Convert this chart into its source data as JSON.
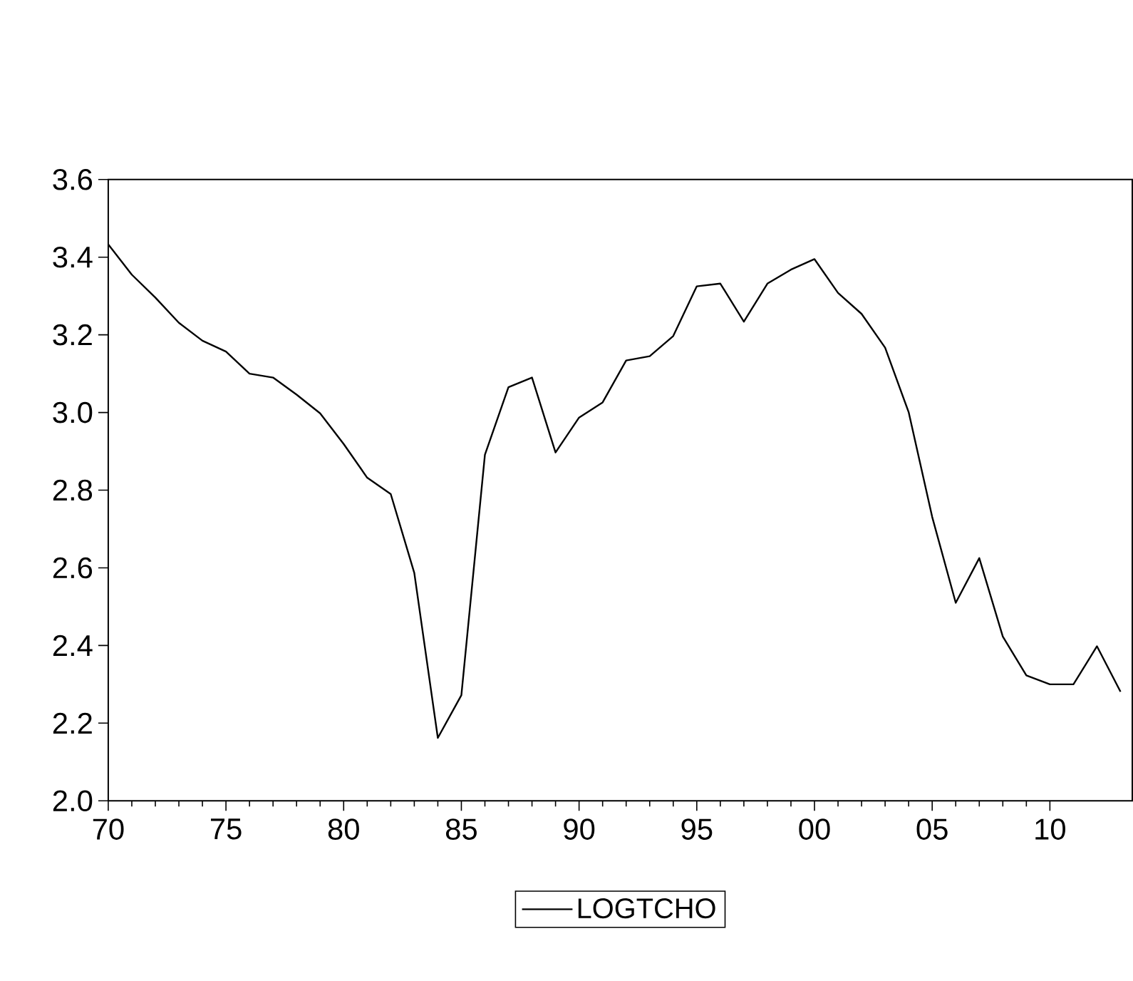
{
  "chart_data": {
    "type": "line",
    "x": [
      1970,
      1971,
      1972,
      1973,
      1974,
      1975,
      1976,
      1977,
      1978,
      1979,
      1980,
      1981,
      1982,
      1983,
      1984,
      1985,
      1986,
      1987,
      1988,
      1989,
      1990,
      1991,
      1992,
      1993,
      1994,
      1995,
      1996,
      1997,
      1998,
      1999,
      2000,
      2001,
      2002,
      2003,
      2004,
      2005,
      2006,
      2007,
      2008,
      2009,
      2010,
      2011,
      2012,
      2013
    ],
    "series": [
      {
        "name": "LOGTCHO",
        "color": "#000000",
        "values": [
          3.433,
          3.355,
          3.296,
          3.231,
          3.185,
          3.157,
          3.1,
          3.09,
          3.046,
          2.998,
          2.919,
          2.832,
          2.79,
          2.587,
          2.162,
          2.272,
          2.891,
          3.065,
          3.09,
          2.897,
          2.987,
          3.026,
          3.134,
          3.145,
          3.197,
          3.325,
          3.332,
          3.234,
          3.332,
          3.368,
          3.395,
          3.308,
          3.254,
          3.167,
          3.001,
          2.731,
          2.51,
          2.625,
          2.423,
          2.323,
          2.3,
          2.3,
          2.398,
          2.281
        ]
      }
    ],
    "xlim": [
      1970,
      2013.5
    ],
    "ylim": [
      2.0,
      3.6
    ],
    "xticks": [
      {
        "value": 1970,
        "label": "70"
      },
      {
        "value": 1975,
        "label": "75"
      },
      {
        "value": 1980,
        "label": "80"
      },
      {
        "value": 1985,
        "label": "85"
      },
      {
        "value": 1990,
        "label": "90"
      },
      {
        "value": 1995,
        "label": "95"
      },
      {
        "value": 2000,
        "label": "00"
      },
      {
        "value": 2005,
        "label": "05"
      },
      {
        "value": 2010,
        "label": "10"
      }
    ],
    "yticks": [
      {
        "value": 2.0,
        "label": "2.0"
      },
      {
        "value": 2.2,
        "label": "2.2"
      },
      {
        "value": 2.4,
        "label": "2.4"
      },
      {
        "value": 2.6,
        "label": "2.6"
      },
      {
        "value": 2.8,
        "label": "2.8"
      },
      {
        "value": 3.0,
        "label": "3.0"
      },
      {
        "value": 3.2,
        "label": "3.2"
      },
      {
        "value": 3.4,
        "label": "3.4"
      },
      {
        "value": 3.6,
        "label": "3.6"
      }
    ],
    "legend": "bottom"
  }
}
